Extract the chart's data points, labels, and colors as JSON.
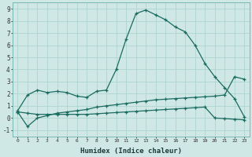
{
  "xlabel": "Humidex (Indice chaleur)",
  "background_color": "#cfe8e5",
  "grid_color": "#aed4cf",
  "line_color": "#1a6b60",
  "xlim": [
    -0.5,
    23.5
  ],
  "ylim": [
    -1.5,
    9.5
  ],
  "xticks": [
    0,
    1,
    2,
    3,
    4,
    5,
    6,
    7,
    8,
    9,
    10,
    11,
    12,
    13,
    14,
    15,
    16,
    17,
    18,
    19,
    20,
    21,
    22,
    23
  ],
  "yticks": [
    -1,
    0,
    1,
    2,
    3,
    4,
    5,
    6,
    7,
    8,
    9
  ],
  "line1_x": [
    0,
    1,
    2,
    3,
    4,
    5,
    6,
    7,
    8,
    9,
    10,
    11,
    12,
    13,
    14,
    15,
    16,
    17,
    18,
    19,
    20,
    21,
    22,
    23
  ],
  "line1_y": [
    0.6,
    1.9,
    2.3,
    2.1,
    2.2,
    2.1,
    1.8,
    1.7,
    2.2,
    2.3,
    4.0,
    6.5,
    8.6,
    8.9,
    8.5,
    8.1,
    7.5,
    7.1,
    6.0,
    4.5,
    3.4,
    2.5,
    1.6,
    0.1
  ],
  "line2_x": [
    0,
    1,
    2,
    3,
    4,
    5,
    6,
    7,
    8,
    9,
    10,
    11,
    12,
    13,
    14,
    15,
    16,
    17,
    18,
    19,
    20,
    21,
    22,
    23
  ],
  "line2_y": [
    0.5,
    -0.7,
    0.0,
    0.2,
    0.4,
    0.5,
    0.6,
    0.7,
    0.9,
    1.0,
    1.1,
    1.2,
    1.3,
    1.4,
    1.5,
    1.55,
    1.6,
    1.65,
    1.7,
    1.75,
    1.8,
    1.9,
    3.4,
    3.2
  ],
  "line3_x": [
    0,
    1,
    2,
    3,
    4,
    5,
    6,
    7,
    8,
    9,
    10,
    11,
    12,
    13,
    14,
    15,
    16,
    17,
    18,
    19,
    20,
    21,
    22,
    23
  ],
  "line3_y": [
    0.5,
    0.4,
    0.3,
    0.3,
    0.3,
    0.3,
    0.3,
    0.3,
    0.35,
    0.4,
    0.45,
    0.5,
    0.55,
    0.6,
    0.65,
    0.7,
    0.75,
    0.8,
    0.85,
    0.9,
    0.0,
    -0.05,
    -0.1,
    -0.15
  ]
}
